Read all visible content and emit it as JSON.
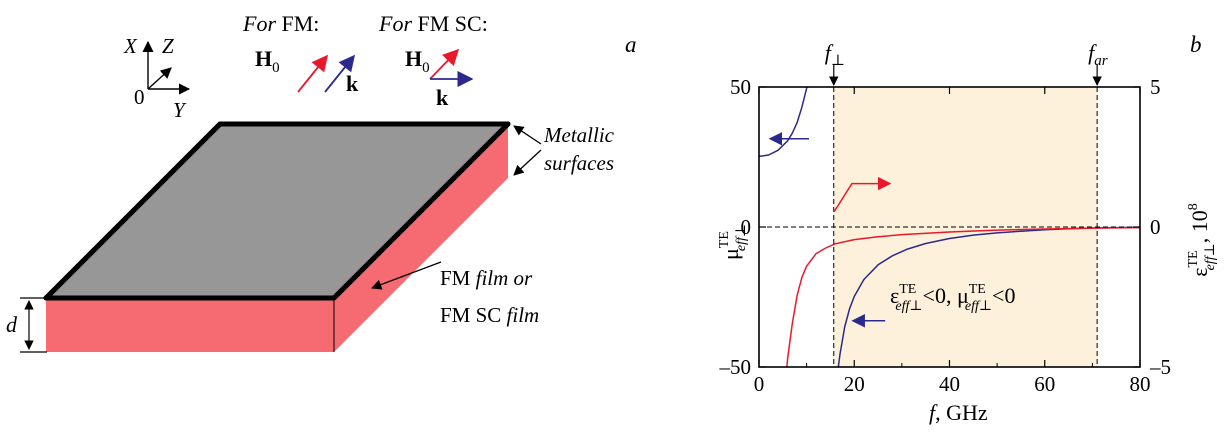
{
  "panel_a": {
    "label": "a",
    "axes": {
      "x": "X",
      "z": "Z",
      "y": "Y",
      "origin": "0"
    },
    "fm_heading_it": "For",
    "fm_heading_rest": " FM:",
    "fmsc_heading_it": "For",
    "fmsc_heading_rest": " FM SC:",
    "h0_symbol": "H",
    "h0_sub": "0",
    "k_symbol": "k",
    "metallic_line1": "Metallic",
    "metallic_line2": "surfaces",
    "film_line1_a": "FM ",
    "film_line1_b": "film or",
    "film_line2_a": "FM SC ",
    "film_line2_b": "film",
    "thickness": "d",
    "colors": {
      "red": "#e8192c",
      "blue": "#2b2a8c",
      "top": "#979797",
      "side": "#f56b71",
      "edge": "#000000"
    }
  },
  "chart_data": {
    "type": "line",
    "panel_label": "b",
    "xlabel_italic": "f",
    "xlabel_rest": ", GHz",
    "xlim": [
      0,
      80
    ],
    "xticks": [
      0,
      20,
      40,
      60,
      80
    ],
    "xtick_labels": [
      "0",
      "20",
      "40",
      "60",
      "80"
    ],
    "ylim_left": [
      -50,
      50
    ],
    "yticks_left": [
      -50,
      0,
      50
    ],
    "ytick_labels_left": [
      "–50",
      "0",
      "50"
    ],
    "ylim_right": [
      -5,
      5
    ],
    "yticks_right": [
      -5,
      0,
      5
    ],
    "ytick_labels_right": [
      "–5",
      "0",
      "5"
    ],
    "ylabel_left": {
      "base": "μ",
      "sup": "TE",
      "sub": "eff⊥"
    },
    "ylabel_right": {
      "base": "ε",
      "sup": "TE",
      "sub": "eff⊥",
      "suffix": ", 10",
      "power": "8"
    },
    "markers": [
      {
        "name": "f",
        "sub": "⊥",
        "x": 15.7
      },
      {
        "name": "f",
        "sub": "ar",
        "x": 71
      }
    ],
    "shaded_region": {
      "x": [
        15.7,
        71
      ],
      "color": "#fdf1db"
    },
    "region_label": {
      "e": "ε",
      "e_sup": "TE",
      "e_sub": "eff⊥",
      "lt0a": "<0, ",
      "m": "μ",
      "m_sup": "TE",
      "m_sub": "eff⊥",
      "lt0b": "<0"
    },
    "grid": false,
    "series": [
      {
        "axis": "left",
        "color": "#2b2a8c",
        "x": [
          0.05,
          2,
          4,
          6,
          7,
          8,
          9,
          10,
          10.5
        ],
        "y": [
          25.2,
          25.7,
          27.4,
          30.8,
          33.5,
          37.3,
          42.8,
          49.5,
          54
        ]
      },
      {
        "axis": "left",
        "color": "#2b2a8c",
        "x": [
          16.5,
          17,
          18,
          19,
          20,
          22,
          25,
          28,
          31,
          35,
          40,
          45,
          50,
          55,
          60,
          65,
          70,
          75,
          80
        ],
        "y": [
          -52,
          -45.4,
          -35.7,
          -29.3,
          -24.8,
          -18.8,
          -13.5,
          -10.3,
          -8.0,
          -5.9,
          -4.1,
          -2.9,
          -2.1,
          -1.5,
          -1.0,
          -0.6,
          -0.35,
          -0.2,
          -0.1
        ]
      },
      {
        "axis": "right",
        "color": "#e8192c",
        "x": [
          5.8,
          6,
          7,
          8,
          9,
          10,
          12,
          14,
          16,
          20,
          25,
          30,
          40,
          50,
          60,
          70,
          80
        ],
        "y": [
          -5.1,
          -4.7,
          -3.45,
          -2.45,
          -1.8,
          -1.4,
          -0.95,
          -0.75,
          -0.6,
          -0.45,
          -0.35,
          -0.27,
          -0.18,
          -0.11,
          -0.07,
          -0.04,
          -0.02
        ]
      }
    ],
    "annotation_arrows": [
      {
        "color": "#2b2a8c",
        "points": [
          [
            10.5,
            31.5
          ],
          [
            2.3,
            31.5
          ]
        ]
      },
      {
        "color": "#2b2a8c",
        "points": [
          [
            26.5,
            -33.5
          ],
          [
            19.7,
            -33.5
          ]
        ]
      },
      {
        "color": "#e8192c",
        "points": [
          [
            15.8,
            5.5
          ],
          [
            19.5,
            15.5
          ],
          [
            27.5,
            15.5
          ]
        ]
      }
    ]
  }
}
